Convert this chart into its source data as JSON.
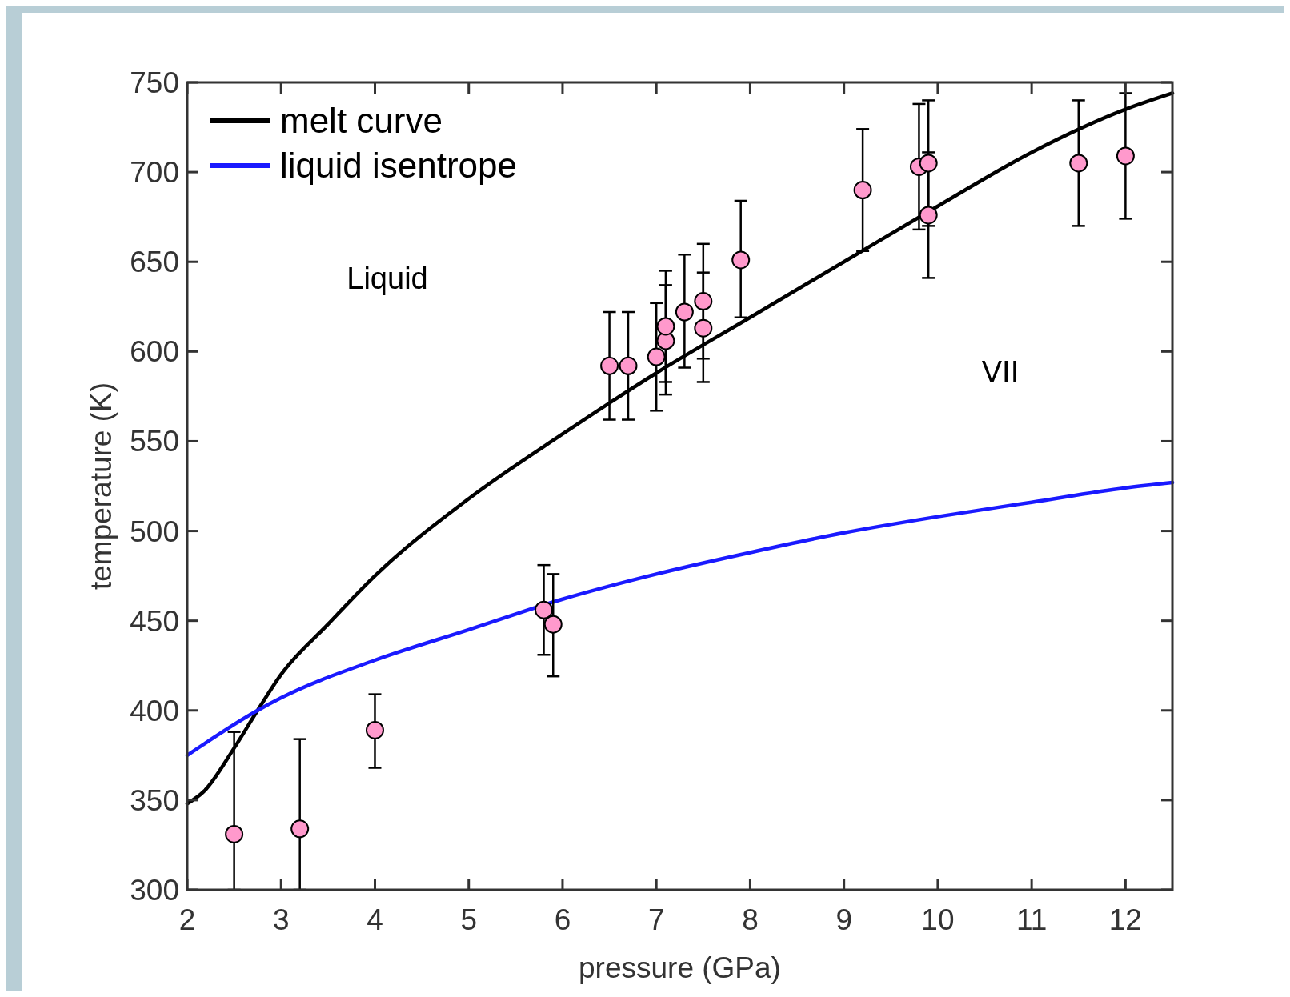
{
  "chart_data": {
    "type": "line",
    "xlabel": "pressure (GPa)",
    "ylabel": "temperature (K)",
    "xlim": [
      2,
      12.5
    ],
    "ylim": [
      300,
      750
    ],
    "xticks": [
      2,
      3,
      4,
      5,
      6,
      7,
      8,
      9,
      10,
      11,
      12
    ],
    "yticks": [
      300,
      350,
      400,
      450,
      500,
      550,
      600,
      650,
      700,
      750
    ],
    "grid": false,
    "legend": "top left",
    "line_style": "solid",
    "annotations": [
      "Liquid",
      "VII"
    ],
    "series": [
      {
        "name": "melt curve",
        "color": "#000000",
        "x": [
          2,
          2.18,
          2.5,
          2.75,
          3,
          3.5,
          4,
          5,
          6,
          7,
          8,
          9,
          10,
          11,
          12,
          12.5
        ],
        "values": [
          348,
          355,
          379,
          400,
          420,
          448,
          475,
          518,
          554,
          588,
          619,
          650,
          681,
          711,
          735,
          744
        ]
      },
      {
        "name": "liquid isentrope",
        "color": "#1a1aff",
        "x": [
          2,
          2.75,
          3,
          4,
          5,
          6,
          7,
          8,
          9,
          10,
          11,
          12,
          12.5
        ],
        "values": [
          375,
          400,
          407,
          428,
          445,
          462,
          476,
          488,
          499,
          508,
          516,
          524,
          527
        ]
      },
      {
        "type": "scatter",
        "color": "#ff99cc",
        "marker": "circle",
        "x": [
          2.5,
          3.2,
          4,
          5.8,
          5.9,
          6.5,
          6.7,
          7,
          7.1,
          7.1,
          7.3,
          7.5,
          7.5,
          7.9,
          9.2,
          9.8,
          9.9,
          9.9,
          11.5,
          12
        ],
        "values": [
          331,
          334,
          389,
          456,
          448,
          592,
          592,
          597,
          606,
          614,
          622,
          628,
          613,
          651,
          690,
          703,
          705,
          676,
          705,
          709
        ],
        "errors": [
          [
            300,
            388
          ],
          [
            300,
            384
          ],
          [
            368,
            409
          ],
          [
            431,
            481
          ],
          [
            419,
            476
          ],
          [
            562,
            622
          ],
          [
            562,
            622
          ],
          [
            567,
            627
          ],
          [
            576,
            637
          ],
          [
            583,
            645
          ],
          [
            591,
            654
          ],
          [
            596,
            660
          ],
          [
            583,
            644
          ],
          [
            619,
            684
          ],
          [
            656,
            724
          ],
          [
            668,
            738
          ],
          [
            670,
            740
          ],
          [
            641,
            711
          ],
          [
            670,
            740
          ],
          [
            674,
            744
          ]
        ]
      }
    ]
  }
}
